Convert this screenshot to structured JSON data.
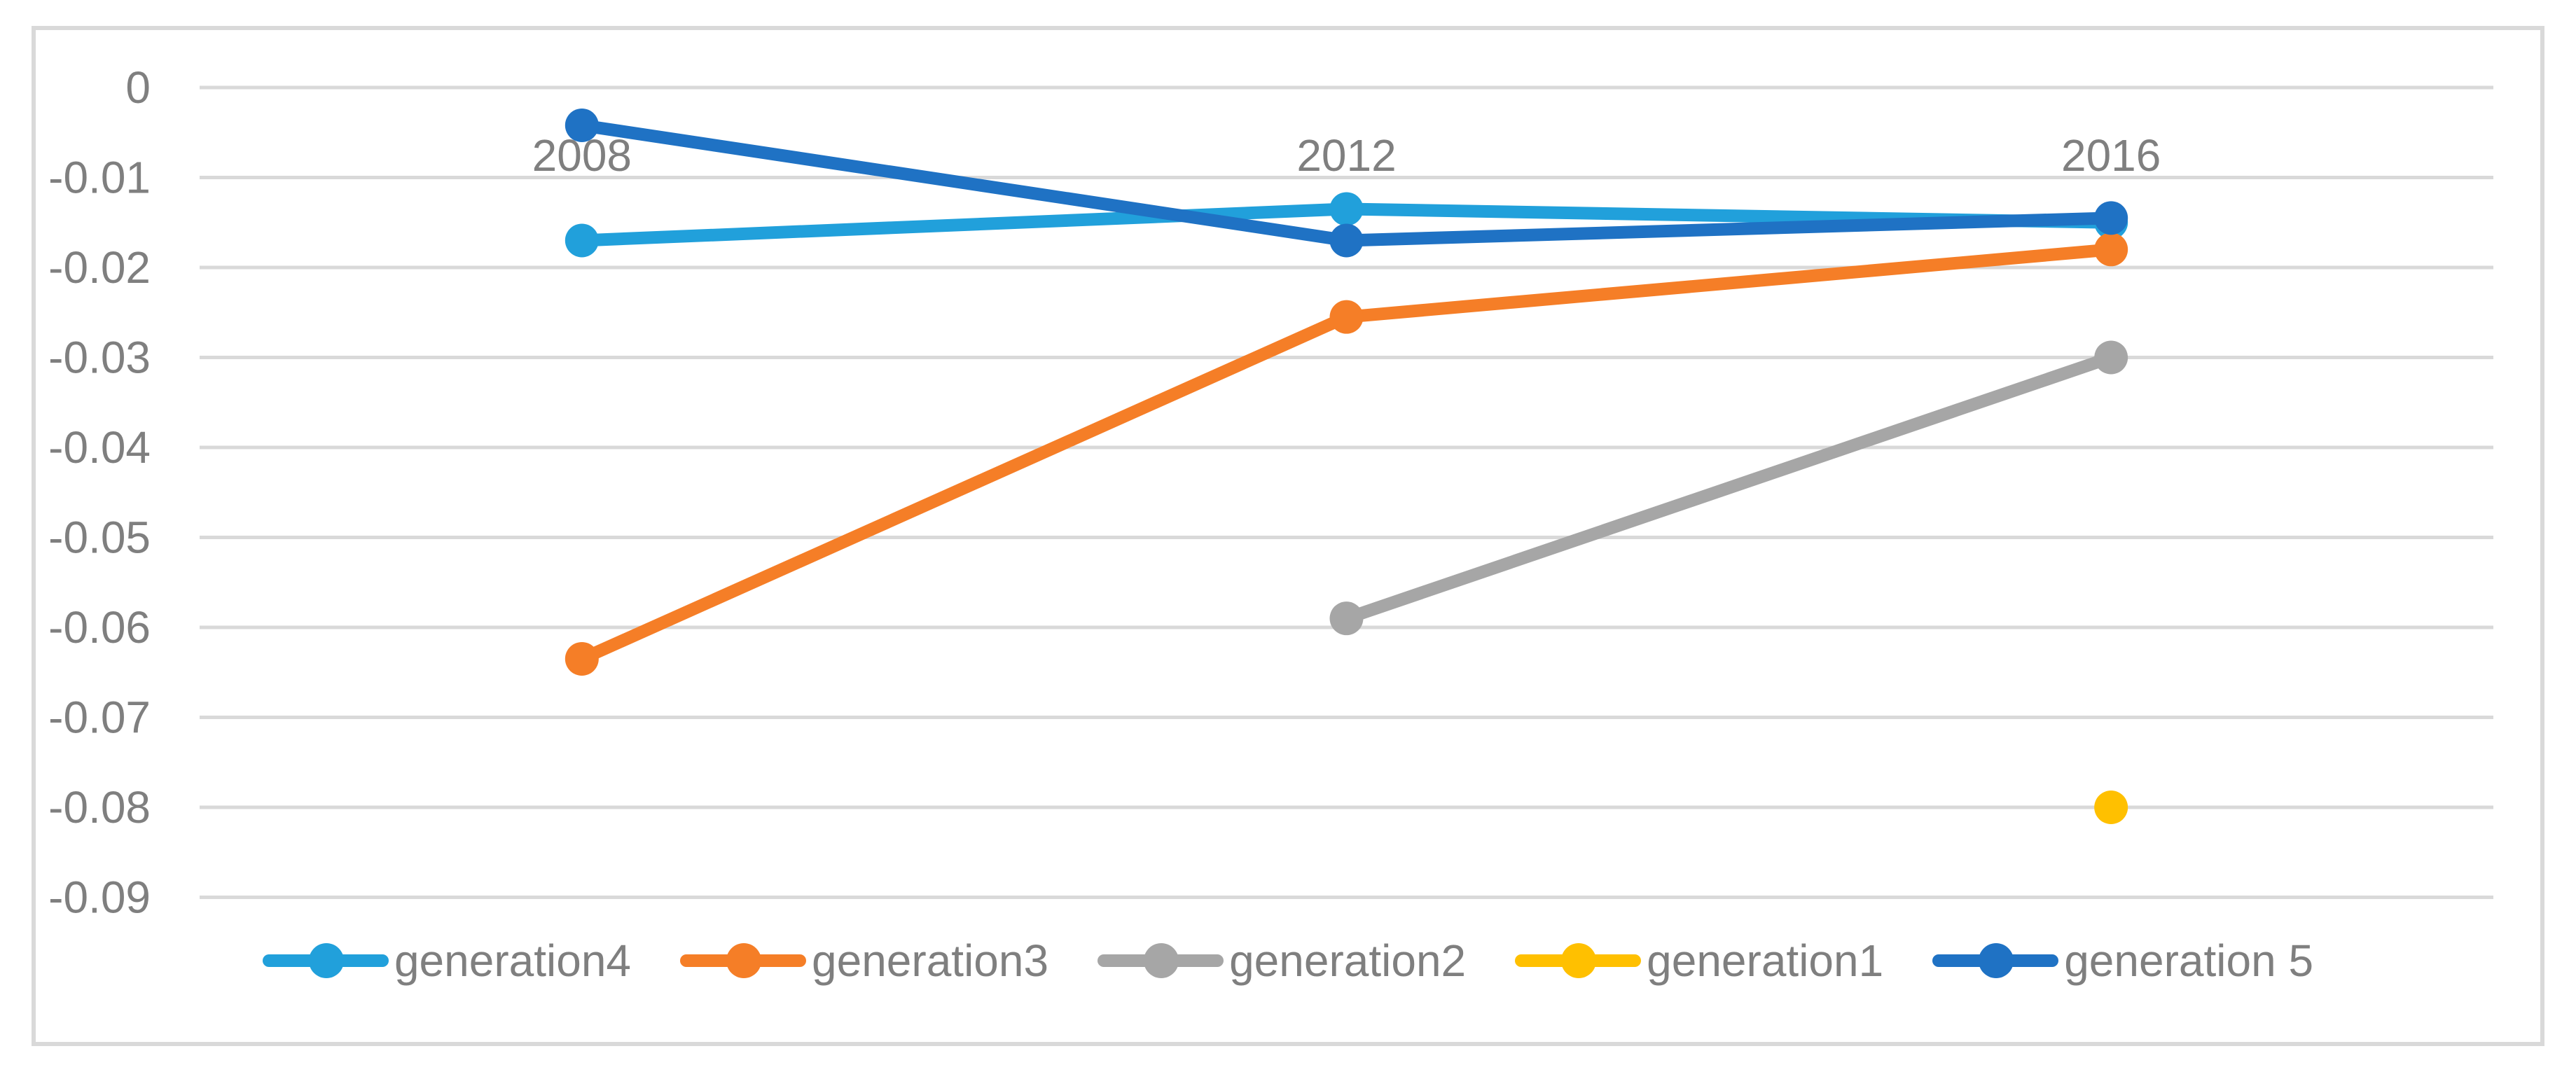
{
  "chart_data": {
    "type": "line",
    "title": "",
    "categories": [
      "2008",
      "2012",
      "2016"
    ],
    "series": [
      {
        "name": "generation4",
        "color": "#21A0DB",
        "values": [
          -0.017,
          -0.0135,
          -0.015
        ]
      },
      {
        "name": "generation3",
        "color": "#F57E27",
        "values": [
          -0.0635,
          -0.0255,
          -0.018
        ]
      },
      {
        "name": "generation2",
        "color": "#A6A6A6",
        "values": [
          null,
          -0.059,
          -0.03
        ]
      },
      {
        "name": "generation1",
        "color": "#FFC000",
        "values": [
          null,
          null,
          -0.08
        ]
      },
      {
        "name": "generation 5",
        "color": "#1F72C4",
        "values": [
          -0.0042,
          -0.017,
          -0.0145
        ]
      }
    ],
    "y_axis": {
      "min": -0.095,
      "max": 0.002,
      "ticks": [
        {
          "label": "0",
          "value": 0
        },
        {
          "label": "-0.01",
          "value": -0.01
        },
        {
          "label": "-0.02",
          "value": -0.02
        },
        {
          "label": "-0.03",
          "value": -0.03
        },
        {
          "label": "-0.04",
          "value": -0.04
        },
        {
          "label": "-0.05",
          "value": -0.05
        },
        {
          "label": "-0.06",
          "value": -0.06
        },
        {
          "label": "-0.07",
          "value": -0.07
        },
        {
          "label": "-0.08",
          "value": -0.08
        },
        {
          "label": "-0.09",
          "value": -0.09
        }
      ]
    },
    "grid": true,
    "legend_position": "bottom",
    "x_labels_position": "top-inside",
    "colors": {
      "gridline": "#D9D9D9",
      "frame_border": "#D9D9D9",
      "axis_text": "#7F7F7F",
      "background": "#FFFFFF"
    }
  }
}
